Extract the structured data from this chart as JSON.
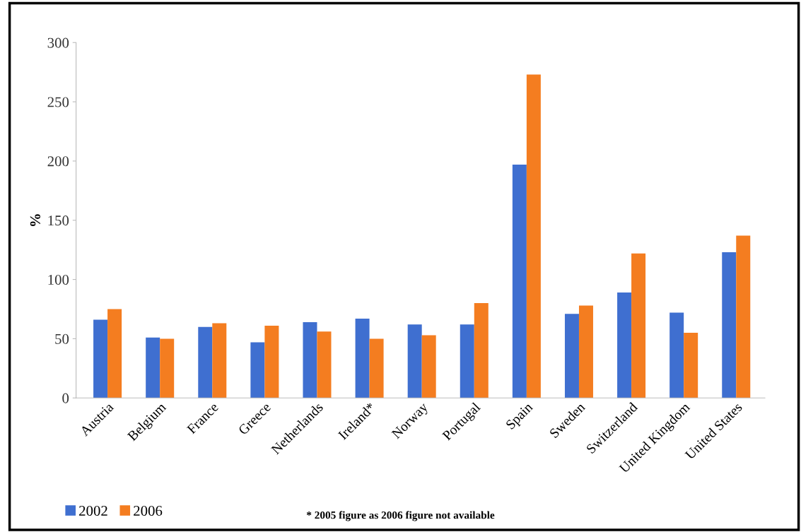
{
  "chart_data": {
    "type": "bar",
    "ylabel": "%",
    "categories": [
      "Austria",
      "Belgium",
      "France",
      "Greece",
      "Netherlands",
      "Ireland*",
      "Norway",
      "Portugal",
      "Spain",
      "Sweden",
      "Switzerland",
      "United Kingdom",
      "United States"
    ],
    "series": [
      {
        "name": "2002",
        "color": "#3f6fd0",
        "values": [
          66,
          51,
          60,
          47,
          64,
          67,
          62,
          62,
          197,
          71,
          89,
          72,
          123
        ]
      },
      {
        "name": "2006",
        "color": "#f47d20",
        "values": [
          75,
          50,
          63,
          61,
          56,
          50,
          53,
          80,
          273,
          78,
          122,
          55,
          137
        ]
      }
    ],
    "ylim": [
      0,
      300
    ],
    "yticks": [
      0,
      50,
      100,
      150,
      200,
      250,
      300
    ],
    "grid": false,
    "legend": "bottom left",
    "annotations": [
      "* 2005 figure as 2006 figure not available"
    ]
  }
}
